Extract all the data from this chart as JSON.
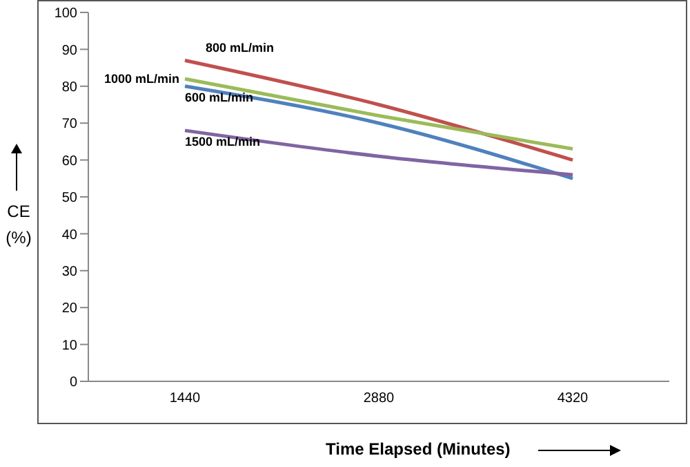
{
  "chart_data": {
    "type": "line",
    "xlabel": "Time Elapsed (Minutes)",
    "ylabel": "CE (%)",
    "categories": [
      "1440",
      "2880",
      "4320"
    ],
    "ylim": [
      0,
      100
    ],
    "yticks": [
      0,
      10,
      20,
      30,
      40,
      50,
      60,
      70,
      80,
      90,
      100
    ],
    "grid": false,
    "legend": false,
    "marker": "none",
    "line_style": "solid",
    "series": [
      {
        "name": "800 mL/min",
        "color": "#c0504d",
        "values": [
          87,
          75,
          60
        ]
      },
      {
        "name": "1000 mL/min",
        "color": "#9bbb59",
        "values": [
          82,
          72,
          63
        ]
      },
      {
        "name": "600 mL/min",
        "color": "#4f81bd",
        "values": [
          80,
          70,
          55
        ]
      },
      {
        "name": "1500 mL/min",
        "color": "#8064a2",
        "values": [
          68,
          61,
          56
        ]
      }
    ]
  }
}
